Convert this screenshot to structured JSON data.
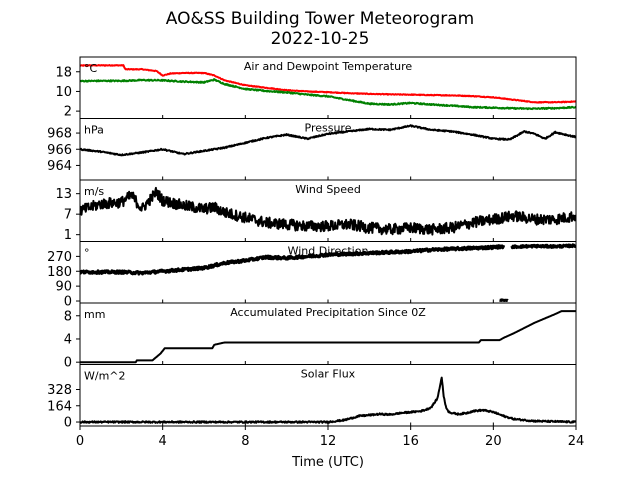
{
  "figure": {
    "title_line1": "AO&SS Building Tower Meteorogram",
    "title_line2": "2022-10-25",
    "xlabel": "Time (UTC)"
  },
  "colors": {
    "air": "#ff0000",
    "dewpoint": "#008000",
    "black": "#000000"
  },
  "chart_data": {
    "type": "line",
    "shared_x": {
      "label": "Time (UTC)",
      "range": [
        0,
        24
      ],
      "ticks": [
        0,
        4,
        8,
        12,
        16,
        20,
        24
      ]
    },
    "panels": [
      {
        "id": "temp",
        "title": "Air and Dewpoint Temperature",
        "unit": "°C",
        "ylim": [
          -1,
          24
        ],
        "yticks": [
          18,
          10,
          2
        ],
        "series": [
          {
            "color": "#ff0000",
            "noise": 0.15,
            "x": [
              0,
              0.5,
              2.1,
              2.2,
              3.0,
              3.4,
              3.7,
              4.0,
              4.4,
              5.0,
              6.0,
              6.5,
              7.0,
              7.5,
              8.0,
              8.5,
              9.0,
              10.0,
              11.0,
              12.0,
              13.0,
              14.0,
              15.0,
              16.0,
              17.0,
              18.0,
              19.0,
              20.0,
              21.0,
              22.0,
              23.0,
              24.0
            ],
            "y": [
              20.5,
              20.6,
              20.6,
              19.0,
              19.0,
              18.6,
              18.3,
              16.5,
              17.3,
              17.5,
              17.5,
              16.5,
              14.5,
              13.5,
              12.5,
              12.0,
              11.5,
              10.5,
              10.0,
              9.7,
              9.3,
              9.0,
              8.8,
              8.7,
              8.5,
              8.4,
              8.1,
              7.6,
              6.6,
              5.6,
              5.6,
              5.9
            ]
          },
          {
            "color": "#008000",
            "noise": 0.25,
            "x": [
              0,
              1.0,
              2.0,
              3.0,
              4.0,
              5.0,
              6.0,
              6.5,
              7.0,
              7.5,
              8.0,
              9.0,
              10.0,
              11.0,
              12.0,
              13.0,
              14.0,
              15.0,
              16.0,
              17.0,
              18.0,
              19.0,
              20.0,
              21.0,
              22.0,
              23.0,
              24.0
            ],
            "y": [
              14.2,
              14.3,
              14.3,
              14.6,
              14.5,
              14.0,
              13.7,
              14.8,
              13.0,
              12.0,
              11.0,
              10.2,
              9.6,
              8.7,
              8.0,
              6.5,
              5.0,
              4.7,
              5.3,
              4.7,
              4.2,
              3.6,
              3.4,
              3.1,
              3.0,
              3.2,
              3.6
            ]
          }
        ]
      },
      {
        "id": "pres",
        "title": "Pressure",
        "unit": "hPa",
        "ylim": [
          962.2,
          969.8
        ],
        "yticks": [
          968,
          966,
          964
        ],
        "series": [
          {
            "color": "#000000",
            "noise": 0.08,
            "x": [
              0,
              1.0,
              2.0,
              3.0,
              4.0,
              5.0,
              6.0,
              7.0,
              8.0,
              9.0,
              10.0,
              11.0,
              12.0,
              13.0,
              14.0,
              15.0,
              16.0,
              17.0,
              18.0,
              19.0,
              20.0,
              20.8,
              21.5,
              22.0,
              22.5,
              23.0,
              24.0
            ],
            "y": [
              966.0,
              965.7,
              965.3,
              965.6,
              966.0,
              965.4,
              965.8,
              966.2,
              966.8,
              967.4,
              967.8,
              967.3,
              967.9,
              968.2,
              968.5,
              968.4,
              968.9,
              968.4,
              968.2,
              967.8,
              967.3,
              967.2,
              968.2,
              967.9,
              967.3,
              968.1,
              967.5
            ]
          }
        ]
      },
      {
        "id": "wind",
        "title": "Wind Speed",
        "unit": "m/s",
        "ylim": [
          -1,
          17
        ],
        "yticks": [
          13,
          7,
          1
        ],
        "series": [
          {
            "color": "#000000",
            "noise": 1.6,
            "x": [
              0,
              1.0,
              2.0,
              2.5,
              3.0,
              3.7,
              4.0,
              5.0,
              6.0,
              6.5,
              7.0,
              8.0,
              9.0,
              10.0,
              11.0,
              12.0,
              13.0,
              14.0,
              15.0,
              16.0,
              17.0,
              18.0,
              19.0,
              20.0,
              21.0,
              22.0,
              23.0,
              24.0
            ],
            "y": [
              8.0,
              10.0,
              10.5,
              12.5,
              8.5,
              13.5,
              11.0,
              9.5,
              8.5,
              9.0,
              7.5,
              6.0,
              4.5,
              4.0,
              3.5,
              3.5,
              4.0,
              3.0,
              2.5,
              3.0,
              2.5,
              3.0,
              4.5,
              5.5,
              6.5,
              5.5,
              5.5,
              6.5
            ]
          }
        ]
      },
      {
        "id": "wdir",
        "title": "Wind Direction",
        "unit": "°",
        "ylim": [
          -12,
          360
        ],
        "yticks": [
          270,
          180,
          90,
          0
        ],
        "series": [
          {
            "color": "#000000",
            "noise": 8,
            "width": 3,
            "x": [
              0,
              2.0,
              3.0,
              4.0,
              5.0,
              6.0,
              7.0,
              8.0,
              9.0,
              10.0,
              11.0,
              12.0,
              13.0,
              14.0,
              15.0,
              16.0,
              17.0,
              18.0,
              19.0,
              20.0,
              20.5
            ],
            "y": [
              175,
              175,
              170,
              180,
              190,
              200,
              230,
              245,
              265,
              260,
              270,
              280,
              285,
              290,
              295,
              300,
              310,
              315,
              320,
              325,
              330
            ]
          },
          {
            "color": "#000000",
            "noise": 6,
            "width": 3,
            "x": [
              20.9,
              22.0,
              23.0,
              24.0
            ],
            "y": [
              328,
              332,
              330,
              335
            ]
          },
          {
            "color": "#000000",
            "noise": 2,
            "width": 3,
            "x": [
              20.3,
              20.7
            ],
            "y": [
              5,
              4
            ]
          }
        ]
      },
      {
        "id": "precip",
        "title": "Accumulated Precipitation Since 0Z",
        "unit": "mm",
        "ylim": [
          -0.4,
          10.2
        ],
        "yticks": [
          8,
          4,
          0
        ],
        "series": [
          {
            "color": "#000000",
            "noise": 0,
            "x": [
              0,
              2.7,
              2.75,
              3.5,
              3.9,
              4.1,
              6.4,
              6.5,
              7.0,
              19.3,
              19.4,
              20.3,
              20.5,
              21.0,
              22.0,
              23.0,
              23.3,
              24.0
            ],
            "y": [
              0,
              0,
              0.3,
              0.3,
              1.5,
              2.4,
              2.4,
              3.0,
              3.4,
              3.4,
              3.8,
              3.8,
              4.2,
              5.0,
              6.8,
              8.3,
              8.8,
              8.8
            ]
          }
        ]
      },
      {
        "id": "solar",
        "title": "Solar Flux",
        "unit": "W/m^2",
        "ylim": [
          -40,
          580
        ],
        "yticks": [
          328,
          164,
          0
        ],
        "series": [
          {
            "color": "#000000",
            "noise": 8,
            "x": [
              0,
              12.0,
              12.8,
              13.5,
              14.0,
              14.5,
              15.0,
              15.5,
              16.0,
              16.5,
              16.8,
              17.0,
              17.3,
              17.5,
              17.6,
              17.7,
              17.8,
              18.0,
              18.3,
              18.7,
              19.0,
              19.5,
              20.0,
              20.5,
              21.0,
              22.0,
              23.0,
              24.0
            ],
            "y": [
              0,
              0,
              20,
              60,
              70,
              80,
              75,
              90,
              100,
              110,
              130,
              150,
              240,
              450,
              260,
              160,
              110,
              90,
              80,
              90,
              110,
              120,
              100,
              60,
              30,
              10,
              5,
              0
            ]
          }
        ]
      }
    ]
  }
}
